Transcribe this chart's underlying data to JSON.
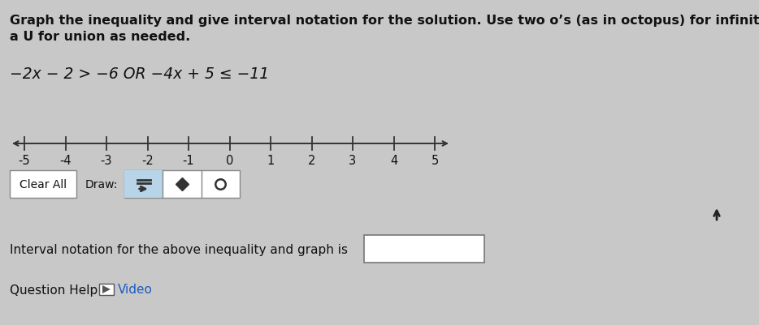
{
  "bg_color": "#c8c8c8",
  "title_line1": "Graph the inequality and give interval notation for the solution. Use two o’s (as in octopus) for infinity and",
  "title_line2": "a U for union as needed.",
  "inequality_text": "−2x − 2 > −6 OR −4x + 5 ≤ −11",
  "number_line": {
    "xmin": -5,
    "xmax": 5,
    "ticks": [
      -5,
      -4,
      -3,
      -2,
      -1,
      0,
      1,
      2,
      3,
      4,
      5
    ]
  },
  "controls_clear_all": "Clear All",
  "controls_draw": "Draw:",
  "interval_text": "Interval notation for the above inequality and graph is",
  "question_help_text": "Question Help:",
  "video_text": "Video",
  "text_color": "#111111",
  "box_color": "#ffffff",
  "highlight_box_color": "#b8d4e8",
  "number_line_color": "#333333",
  "cursor_color": "#222222",
  "video_color": "#1a5cbf",
  "font_size_title": 11.5,
  "font_size_ineq": 13.5,
  "font_size_body": 11,
  "font_size_ticks": 10.5
}
